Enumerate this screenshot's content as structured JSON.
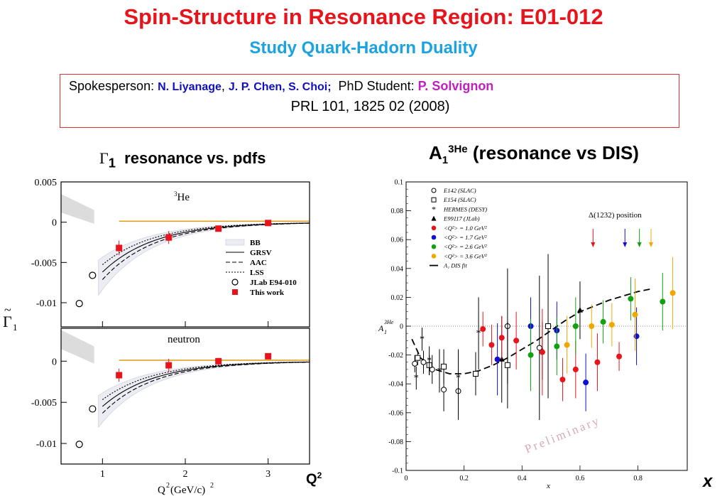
{
  "header": {
    "title": "Spin-Structure in Resonance Region: E01-012",
    "subtitle": "Study Quark-Hadorn Duality"
  },
  "credits": {
    "spokesperson_label": "Spokesperson: ",
    "spokesperson_1": "N. Liyanage",
    "separator": ", ",
    "spokesperson_2": "J. P. Chen, S. Choi;",
    "student_label": "PhD Student: ",
    "student": "P. Solvignon",
    "reference": "PRL 101, 1825 02 (2008)"
  },
  "left_panel": {
    "heading_symbol": "Γ",
    "heading_sub": "1",
    "heading_text": "resonance vs. pdfs",
    "y_axis_symbol": "Γ",
    "y_axis_sub": "1",
    "y_axis_tilde": "~",
    "x_axis_title": "Q",
    "x_axis_sup": "2",
    "x_axis_unit": "(GeV/c)",
    "x_axis_unit_sup": "2",
    "big_axis_label": "Q",
    "big_axis_sup": "2"
  },
  "right_panel": {
    "heading_main": "A",
    "heading_sub": "1",
    "heading_sup": "3He",
    "heading_rest": " (resonance vs DIS)",
    "big_x_label": "x",
    "delta_label": "Δ(1232) position",
    "watermark": "Preliminary",
    "y_axis_main": "A",
    "y_axis_sub": "1",
    "y_axis_sup": "3He",
    "x_axis_title": "x"
  },
  "chart_data": [
    {
      "type": "scatter",
      "name": "3He",
      "panel_label": "3He",
      "xlim": [
        0.5,
        3.5
      ],
      "ylim": [
        -0.013,
        0.005
      ],
      "x_ticks": [
        1,
        2,
        3
      ],
      "y_ticks": [
        0.005,
        0,
        -0.005,
        -0.01
      ],
      "y_tick_labels": [
        "0.005",
        "0",
        "-0.005",
        "-0.01"
      ],
      "x_tick_labels": [
        "1",
        "2",
        "3"
      ],
      "legend": [
        "BB",
        "GRSV",
        "AAC",
        "LSS",
        "JLab E94-010",
        "This work"
      ],
      "legend_position": "lower-right",
      "series": [
        {
          "name": "JLab E94-010",
          "marker": "open-circle",
          "x": [
            0.72,
            0.88
          ],
          "y": [
            -0.0101,
            -0.0066
          ],
          "err": [
            0.0004,
            0.0004
          ]
        },
        {
          "name": "This work",
          "marker": "filled-square",
          "x": [
            1.2,
            1.8,
            2.4,
            3.0
          ],
          "y": [
            -0.0032,
            -0.0019,
            -0.0008,
            -0.0001
          ],
          "err": [
            0.0009,
            0.0008,
            0.0004,
            0.0002
          ]
        }
      ]
    },
    {
      "type": "scatter",
      "name": "neutron",
      "panel_label": "neutron",
      "xlim": [
        0.5,
        3.5
      ],
      "ylim": [
        -0.0125,
        0.004
      ],
      "x_ticks": [
        1,
        2,
        3
      ],
      "y_ticks": [
        0,
        -0.005,
        -0.01
      ],
      "y_tick_labels": [
        "0",
        "-0.005",
        "-0.01"
      ],
      "x_tick_labels": [
        "1",
        "2",
        "3"
      ],
      "series": [
        {
          "name": "JLab E94-010",
          "marker": "open-circle",
          "x": [
            0.72,
            0.88
          ],
          "y": [
            -0.0101,
            -0.0058
          ],
          "err": [
            0.0004,
            0.0004
          ]
        },
        {
          "name": "This work",
          "marker": "filled-square",
          "x": [
            1.2,
            1.8,
            2.4,
            3.0
          ],
          "y": [
            -0.0017,
            -0.0005,
            0.0,
            0.0006
          ],
          "err": [
            0.0008,
            0.0008,
            0.0004,
            0.0002
          ]
        }
      ]
    },
    {
      "type": "scatter",
      "name": "A1 3He",
      "xlim": [
        0,
        0.97
      ],
      "ylim": [
        -0.1,
        0.1
      ],
      "x_ticks": [
        0,
        0.2,
        0.4,
        0.6,
        0.8
      ],
      "x_tick_labels": [
        "0",
        "0.2",
        "0.4",
        "0.6",
        "0.8"
      ],
      "y_ticks": [
        -0.1,
        -0.08,
        -0.06,
        -0.04,
        -0.02,
        0,
        0.02,
        0.04,
        0.06,
        0.08,
        0.1
      ],
      "y_tick_labels": [
        "-0.1",
        "-0.08",
        "-0.06",
        "-0.04",
        "-0.02",
        "0",
        "0.02",
        "0.04",
        "0.06",
        "0.08",
        "0.1"
      ],
      "legend": [
        "E142 (SLAC)",
        "E154 (SLAC)",
        "HERMES (DESY)",
        "E99117 (JLab)",
        "<Q²> = 1.0 GeV²",
        "<Q²> = 1.7 GeV²",
        "<Q²> = 2.6 GeV²",
        "<Q²> = 3.6 GeV²",
        "A₁ DIS fit"
      ],
      "legend_position": "top-left",
      "delta_arrows_x": [
        0.645,
        0.755,
        0.805,
        0.845
      ],
      "dis_fit": {
        "x": [
          0.02,
          0.05,
          0.1,
          0.15,
          0.2,
          0.25,
          0.3,
          0.35,
          0.4,
          0.45,
          0.5,
          0.55,
          0.6,
          0.65,
          0.7,
          0.75,
          0.8,
          0.85
        ],
        "y": [
          -0.009,
          -0.022,
          -0.03,
          -0.033,
          -0.033,
          -0.031,
          -0.027,
          -0.022,
          -0.016,
          -0.01,
          -0.003,
          0.004,
          0.01,
          0.014,
          0.018,
          0.021,
          0.024,
          0.026
        ]
      },
      "series": [
        {
          "name": "E142 (SLAC)",
          "marker": "open-circle",
          "color": "#000000",
          "x": [
            0.03,
            0.06,
            0.09,
            0.13,
            0.18,
            0.35,
            0.46
          ],
          "y": [
            -0.026,
            -0.025,
            -0.03,
            -0.044,
            -0.045,
            0.0,
            -0.015
          ],
          "err": [
            0.006,
            0.008,
            0.01,
            0.015,
            0.02,
            0.04,
            0.05
          ]
        },
        {
          "name": "E154 (SLAC)",
          "marker": "open-square",
          "color": "#000000",
          "x": [
            0.04,
            0.08,
            0.13,
            0.24,
            0.35,
            0.49
          ],
          "y": [
            -0.022,
            -0.027,
            -0.028,
            -0.033,
            -0.027,
            0.0
          ],
          "err": [
            0.005,
            0.007,
            0.012,
            0.015,
            0.03,
            0.05
          ]
        },
        {
          "name": "HERMES (DESY)",
          "marker": "star",
          "color": "#000000",
          "x": [
            0.035,
            0.055,
            0.08,
            0.115,
            0.18,
            0.25
          ],
          "y": [
            -0.036,
            -0.009,
            -0.024,
            -0.031,
            -0.036,
            -0.005
          ],
          "err": [
            0.008,
            0.008,
            0.01,
            0.015,
            0.02,
            0.025
          ]
        },
        {
          "name": "E99117 (JLab)",
          "marker": "filled-triangle",
          "color": "#000000",
          "x": [
            0.33,
            0.47,
            0.6
          ],
          "y": [
            -0.023,
            -0.017,
            0.011
          ],
          "err": [
            0.03,
            0.02,
            0.02
          ]
        },
        {
          "name": "<Q²> = 1.0 GeV²",
          "marker": "filled-circle",
          "color": "#e8141c",
          "x": [
            0.265,
            0.295,
            0.33,
            0.38,
            0.47,
            0.54,
            0.585,
            0.66,
            0.735
          ],
          "y": [
            -0.002,
            -0.013,
            -0.008,
            -0.01,
            -0.018,
            -0.037,
            -0.03,
            -0.025,
            -0.021
          ],
          "err": [
            0.012,
            0.014,
            0.015,
            0.02,
            0.03,
            0.015,
            0.02,
            0.02,
            0.01
          ]
        },
        {
          "name": "<Q²> = 1.7 GeV²",
          "marker": "filled-circle",
          "color": "#1010d0",
          "x": [
            0.315,
            0.43,
            0.52,
            0.62,
            0.795
          ],
          "y": [
            -0.023,
            0.0,
            -0.003,
            -0.039,
            -0.007
          ],
          "err": [
            0.025,
            0.02,
            0.02,
            0.02,
            0.02
          ]
        },
        {
          "name": "<Q²> = 2.6 GeV²",
          "marker": "filled-circle",
          "color": "#10a010",
          "x": [
            0.43,
            0.52,
            0.585,
            0.68,
            0.775,
            0.885
          ],
          "y": [
            -0.02,
            -0.014,
            0.0,
            0.003,
            0.019,
            0.017
          ],
          "err": [
            0.025,
            0.02,
            0.02,
            0.015,
            0.015,
            0.02
          ]
        },
        {
          "name": "<Q²> = 3.6 GeV²",
          "marker": "filled-circle",
          "color": "#f0a800",
          "x": [
            0.555,
            0.64,
            0.71,
            0.79,
            0.92
          ],
          "y": [
            -0.013,
            0.0,
            0.001,
            0.008,
            0.023
          ],
          "err": [
            0.02,
            0.015,
            0.015,
            0.025,
            0.025
          ]
        }
      ]
    }
  ]
}
